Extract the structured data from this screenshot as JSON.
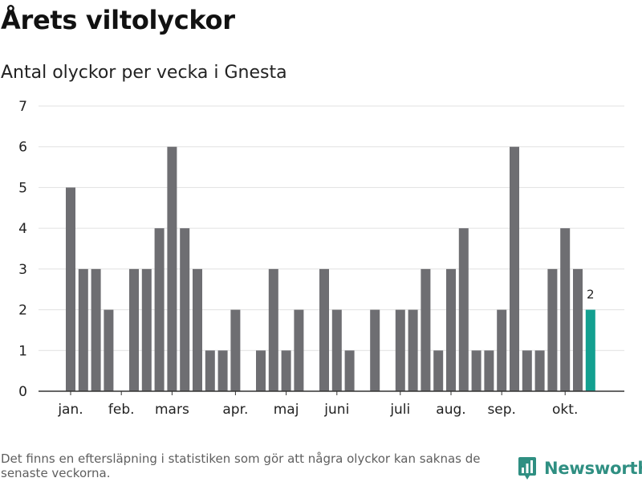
{
  "chart_data": {
    "type": "bar",
    "title": "Årets viltolyckor",
    "subtitle": "Antal olyckor per vecka i Gnesta",
    "values": [
      5,
      3,
      3,
      2,
      0,
      3,
      3,
      4,
      6,
      4,
      3,
      1,
      1,
      2,
      0,
      1,
      3,
      1,
      2,
      0,
      3,
      2,
      1,
      0,
      2,
      0,
      2,
      2,
      3,
      1,
      3,
      4,
      1,
      1,
      2,
      6,
      1,
      1,
      3,
      4,
      3,
      2
    ],
    "ylim": [
      0,
      7
    ],
    "yticks": [
      "0",
      "1",
      "2",
      "3",
      "4",
      "5",
      "6",
      "7"
    ],
    "month_labels": [
      {
        "label": "jan.",
        "week": 1
      },
      {
        "label": "feb.",
        "week": 5
      },
      {
        "label": "mars",
        "week": 9
      },
      {
        "label": "apr.",
        "week": 14
      },
      {
        "label": "maj",
        "week": 18
      },
      {
        "label": "juni",
        "week": 22
      },
      {
        "label": "juli",
        "week": 27
      },
      {
        "label": "aug.",
        "week": 31
      },
      {
        "label": "sep.",
        "week": 35
      },
      {
        "label": "okt.",
        "week": 40
      }
    ],
    "highlight_index": 41,
    "highlight_label": "2",
    "grid": true
  },
  "colors": {
    "bar": "#6e6e72",
    "highlight": "#13a090",
    "grid": "#e1e1e1",
    "axis": "#333333"
  },
  "footnote": "Det finns en eftersläpning i statistiken som gör att några olyckor kan saknas de senaste veckorna.",
  "brand": {
    "name": "Newsworthy",
    "icon": "newsworthy-logo-icon"
  }
}
